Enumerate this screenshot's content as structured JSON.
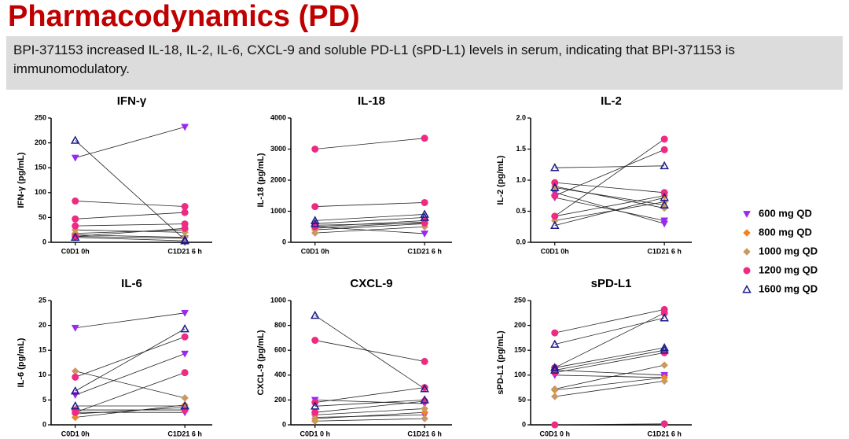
{
  "header": {
    "title": "Pharmacodynamics (PD)",
    "description": "BPI-371153 increased IL-18, IL-2, IL-6, CXCL-9 and soluble PD-L1 (sPD-L1) levels in serum, indicating that BPI-371153 is immunomodulatory."
  },
  "legend": {
    "position": "right",
    "items": [
      {
        "name": "600 mg QD",
        "color": "#9b27f0",
        "marker": "triangle-down"
      },
      {
        "name": "800 mg QD",
        "color": "#f5821f",
        "marker": "diamond"
      },
      {
        "name": "1000 mg QD",
        "color": "#c89a62",
        "marker": "diamond"
      },
      {
        "name": "1200 mg QD",
        "color": "#ee2a83",
        "marker": "circle"
      },
      {
        "name": "1600 mg QD",
        "color": "#1c1c8a",
        "marker": "triangle-up-open"
      }
    ]
  },
  "chart_data": [
    {
      "type": "paired",
      "title": "IFN-γ",
      "ylabel": "IFN-γ (pg/mL)",
      "categories": [
        "C0D1 0h",
        "C1D21 6 h"
      ],
      "ylim": [
        0,
        250
      ],
      "yticks": [
        0,
        50,
        100,
        150,
        200,
        250
      ],
      "series": [
        {
          "values": [
            [
              170,
              232
            ],
            [
              12,
              8
            ]
          ]
        },
        {
          "values": [
            [
              18,
              25
            ]
          ]
        },
        {
          "values": [
            [
              25,
              20
            ],
            [
              15,
              10
            ]
          ]
        },
        {
          "values": [
            [
              83,
              72
            ],
            [
              47,
              60
            ],
            [
              33,
              37
            ],
            [
              12,
              28
            ]
          ]
        },
        {
          "values": [
            [
              205,
              5
            ],
            [
              10,
              3
            ]
          ]
        }
      ]
    },
    {
      "type": "paired",
      "title": "IL-18",
      "ylabel": "IL-18 (pg/mL)",
      "categories": [
        "C0D1 0h",
        "C1D21 6 h"
      ],
      "ylim": [
        0,
        4000
      ],
      "yticks": [
        0,
        1000,
        2000,
        3000,
        4000
      ],
      "series": [
        {
          "values": [
            [
              500,
              280
            ]
          ]
        },
        {
          "values": [
            [
              450,
              650
            ]
          ]
        },
        {
          "values": [
            [
              300,
              500
            ],
            [
              400,
              600
            ]
          ]
        },
        {
          "values": [
            [
              3000,
              3350
            ],
            [
              1150,
              1280
            ],
            [
              500,
              700
            ],
            [
              550,
              620
            ]
          ]
        },
        {
          "values": [
            [
              700,
              900
            ],
            [
              600,
              800
            ]
          ]
        }
      ]
    },
    {
      "type": "paired",
      "title": "IL-2",
      "ylabel": "IL-2 (pg/mL)",
      "categories": [
        "C0D1 0h",
        "C1D21 6 h"
      ],
      "ylim": [
        0,
        2
      ],
      "yticks": [
        {
          "value": 0,
          "label": "0.0"
        },
        0.5,
        {
          "value": 1,
          "label": "1.0"
        },
        1.5,
        {
          "value": 2,
          "label": "2.0"
        }
      ],
      "series": [
        {
          "values": [
            [
              0.72,
              0.35
            ],
            [
              0.8,
              0.3
            ]
          ]
        },
        {
          "values": [
            [
              0.42,
              0.75
            ]
          ]
        },
        {
          "values": [
            [
              0.35,
              0.65
            ],
            [
              0.9,
              0.55
            ]
          ]
        },
        {
          "values": [
            [
              0.96,
              0.8
            ],
            [
              0.42,
              1.66
            ],
            [
              0.75,
              1.49
            ]
          ]
        },
        {
          "values": [
            [
              1.2,
              1.23
            ],
            [
              0.88,
              0.6
            ],
            [
              0.27,
              0.72
            ]
          ]
        }
      ]
    },
    {
      "type": "paired",
      "title": "IL-6",
      "ylabel": "IL-6 (pg/mL)",
      "categories": [
        "C0D1 0h",
        "C1D21 6 h"
      ],
      "ylim": [
        0,
        25
      ],
      "yticks": [
        0,
        5,
        10,
        15,
        20,
        25
      ],
      "series": [
        {
          "values": [
            [
              19.5,
              22.5
            ],
            [
              6,
              14.3
            ],
            [
              2.5,
              2.5
            ]
          ]
        },
        {
          "values": [
            [
              1.5,
              4
            ]
          ]
        },
        {
          "values": [
            [
              10.8,
              5.4
            ],
            [
              2.2,
              3.5
            ]
          ]
        },
        {
          "values": [
            [
              9.6,
              17.7
            ],
            [
              2.5,
              10.5
            ],
            [
              3,
              3
            ]
          ]
        },
        {
          "values": [
            [
              6.8,
              19.3
            ],
            [
              3.8,
              3.8
            ]
          ]
        }
      ]
    },
    {
      "type": "paired",
      "title": "CXCL-9",
      "ylabel": "CXCL-9 (pg/mL)",
      "categories": [
        "C0D1 0 h",
        "C1D21 6 h"
      ],
      "ylim": [
        0,
        1000
      ],
      "yticks": [
        0,
        200,
        400,
        600,
        800,
        1000
      ],
      "series": [
        {
          "values": [
            [
              200,
              170
            ],
            [
              60,
              80
            ]
          ]
        },
        {
          "values": [
            [
              50,
              100
            ]
          ]
        },
        {
          "values": [
            [
              80,
              130
            ],
            [
              30,
              50
            ]
          ]
        },
        {
          "values": [
            [
              680,
              510
            ],
            [
              180,
              300
            ],
            [
              100,
              190
            ]
          ]
        },
        {
          "values": [
            [
              880,
              290
            ],
            [
              150,
              200
            ]
          ]
        }
      ]
    },
    {
      "type": "paired",
      "title": "sPD-L1",
      "ylabel": "sPD-L1 (pg/mL)",
      "categories": [
        "C0D1 0 h",
        "C1D21 6 h"
      ],
      "ylim": [
        0,
        250
      ],
      "yticks": [
        0,
        50,
        100,
        150,
        200,
        250
      ],
      "series": [
        {
          "values": [
            [
              100,
              95
            ],
            [
              110,
              100
            ]
          ]
        },
        {
          "values": [
            [
              70,
              95
            ]
          ]
        },
        {
          "values": [
            [
              57,
              88
            ],
            [
              72,
              120
            ]
          ]
        },
        {
          "values": [
            [
              185,
              232
            ],
            [
              115,
              225
            ],
            [
              0,
              2
            ],
            [
              105,
              145
            ]
          ]
        },
        {
          "values": [
            [
              162,
              215
            ],
            [
              110,
              150
            ],
            [
              115,
              155
            ]
          ]
        }
      ]
    }
  ]
}
